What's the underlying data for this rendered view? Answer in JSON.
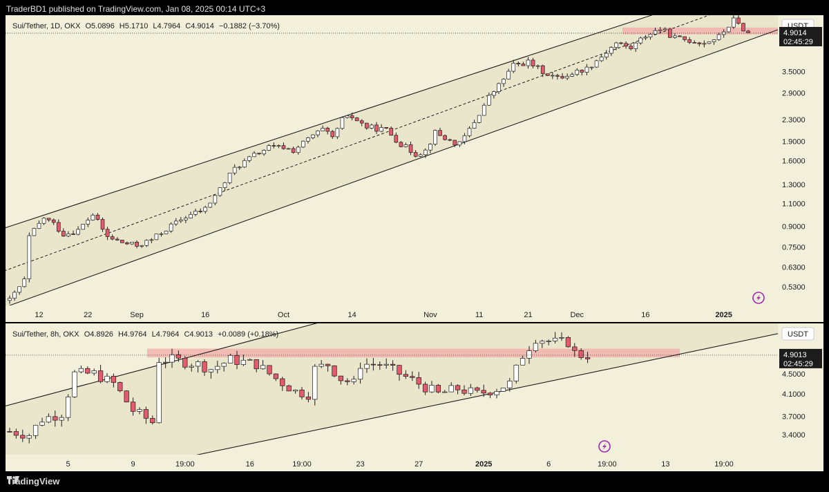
{
  "publisher_text": "TraderBD1 published on TradingView.com, Jan 08, 2025 00:14 UTC+3",
  "footer_brand": "TradingView",
  "colors": {
    "up": "#ffffff",
    "down": "#e35b6c",
    "wick": "#1c1c1c",
    "zone": "#f2b0ad",
    "channel": "#e9e4c9",
    "bg": "#f2efdb"
  },
  "top_panel": {
    "symbol": "Sui/Tether, 1D, OKX",
    "open": "O5.0896",
    "high": "H5.1710",
    "low": "L4.7964",
    "close": "C4.9014",
    "change": "−0.1882 (−3.70%)",
    "currency": "USDT",
    "price_tag": "4.9014",
    "countdown": "02:45:29"
  },
  "bottom_panel": {
    "symbol": "Sui/Tether, 8h, OKX",
    "open": "O4.8926",
    "high": "H4.9764",
    "low": "L4.7964",
    "close": "C4.9013",
    "change": "+0.0089 (+0.18%)",
    "currency": "USDT",
    "price_tag": "4.9013",
    "countdown": "02:45:29"
  },
  "chart_data": [
    {
      "type": "candlestick",
      "title": "Sui/Tether, 1D, OKX",
      "scale": "log",
      "ylim": [
        0.45,
        5.6
      ],
      "y_ticks": [
        "3.5000",
        "2.9000",
        "2.3000",
        "1.9000",
        "1.6000",
        "1.3000",
        "1.1000",
        "0.9000",
        "0.7500",
        "0.6300",
        "0.5300"
      ],
      "x_ticks": [
        "12",
        "22",
        "Sep",
        "16",
        "Oct",
        "14",
        "Nov",
        "11",
        "21",
        "Dec",
        "16",
        "2025"
      ],
      "x_tick_index": [
        6,
        16,
        26,
        40,
        56,
        70,
        86,
        96,
        106,
        116,
        130,
        146
      ],
      "n_bars": 152,
      "waypoints": [
        [
          0,
          0.47
        ],
        [
          3,
          0.56
        ],
        [
          4,
          0.82
        ],
        [
          7,
          0.97
        ],
        [
          9,
          0.92
        ],
        [
          11,
          0.84
        ],
        [
          14,
          0.87
        ],
        [
          17,
          1.0
        ],
        [
          20,
          0.82
        ],
        [
          23,
          0.78
        ],
        [
          26,
          0.76
        ],
        [
          29,
          0.8
        ],
        [
          32,
          0.88
        ],
        [
          36,
          0.98
        ],
        [
          40,
          1.05
        ],
        [
          43,
          1.25
        ],
        [
          46,
          1.5
        ],
        [
          50,
          1.68
        ],
        [
          53,
          1.8
        ],
        [
          56,
          1.8
        ],
        [
          58,
          1.75
        ],
        [
          62,
          2.0
        ],
        [
          64,
          2.1
        ],
        [
          66,
          1.95
        ],
        [
          68,
          2.3
        ],
        [
          70,
          2.35
        ],
        [
          73,
          2.15
        ],
        [
          77,
          2.1
        ],
        [
          80,
          1.85
        ],
        [
          83,
          1.7
        ],
        [
          85,
          1.75
        ],
        [
          87,
          2.05
        ],
        [
          90,
          1.9
        ],
        [
          92,
          1.85
        ],
        [
          95,
          2.25
        ],
        [
          98,
          2.8
        ],
        [
          100,
          3.1
        ],
        [
          103,
          3.7
        ],
        [
          106,
          3.8
        ],
        [
          109,
          3.5
        ],
        [
          112,
          3.3
        ],
        [
          115,
          3.45
        ],
        [
          118,
          3.6
        ],
        [
          121,
          4.0
        ],
        [
          124,
          4.5
        ],
        [
          127,
          4.3
        ],
        [
          130,
          4.8
        ],
        [
          133,
          5.1
        ],
        [
          136,
          4.7
        ],
        [
          139,
          4.6
        ],
        [
          142,
          4.5
        ],
        [
          145,
          4.75
        ],
        [
          148,
          5.5
        ],
        [
          151,
          4.9
        ]
      ],
      "zone": {
        "low": 4.85,
        "high": 5.15
      },
      "channel": {
        "lower": [
          [
            0,
            0.45
          ],
          [
            151,
            4.6
          ]
        ],
        "upper": [
          [
            0,
            0.9
          ],
          [
            132,
            5.8
          ]
        ],
        "mid": [
          [
            0,
            0.62
          ],
          [
            151,
            6.5
          ]
        ]
      }
    },
    {
      "type": "candlestick",
      "title": "Sui/Tether, 8h, OKX",
      "scale": "log",
      "ylim": [
        3.1,
        5.6
      ],
      "y_ticks": [
        "4.5000",
        "4.1000",
        "3.7000",
        "3.4000"
      ],
      "x_ticks": [
        "5",
        "9",
        "19:00",
        "16",
        "19:00",
        "23",
        "27",
        "2025",
        "6",
        "19:00",
        "13",
        "19:00"
      ],
      "x_tick_index": [
        9,
        19,
        27,
        37,
        45,
        54,
        63,
        73,
        83,
        92,
        101,
        110
      ],
      "n_bars": 90,
      "waypoints": [
        [
          0,
          3.45
        ],
        [
          3,
          3.4
        ],
        [
          5,
          3.65
        ],
        [
          8,
          3.75
        ],
        [
          10,
          4.5
        ],
        [
          13,
          4.5
        ],
        [
          16,
          4.3
        ],
        [
          19,
          3.8
        ],
        [
          22,
          3.6
        ],
        [
          23,
          4.8
        ],
        [
          25,
          4.8
        ],
        [
          29,
          4.7
        ],
        [
          31,
          4.6
        ],
        [
          34,
          4.8
        ],
        [
          38,
          4.7
        ],
        [
          41,
          4.4
        ],
        [
          44,
          4.15
        ],
        [
          46,
          4.1
        ],
        [
          47,
          4.6
        ],
        [
          49,
          4.7
        ],
        [
          51,
          4.4
        ],
        [
          53,
          4.3
        ],
        [
          54,
          4.7
        ],
        [
          57,
          4.7
        ],
        [
          60,
          4.5
        ],
        [
          63,
          4.3
        ],
        [
          66,
          4.1
        ],
        [
          69,
          4.2
        ],
        [
          72,
          4.1
        ],
        [
          75,
          4.2
        ],
        [
          77,
          4.3
        ],
        [
          79,
          4.9
        ],
        [
          81,
          5.3
        ],
        [
          84,
          5.2
        ],
        [
          86,
          5.2
        ],
        [
          87,
          4.95
        ],
        [
          88,
          4.9
        ]
      ],
      "zone": {
        "low": 4.85,
        "high": 5.05
      },
      "channel": {
        "lower": [
          [
            29,
            3.1
          ],
          [
            115,
            5.3
          ]
        ],
        "upper": [
          [
            0,
            3.9
          ],
          [
            70,
            6.8
          ]
        ]
      }
    }
  ]
}
